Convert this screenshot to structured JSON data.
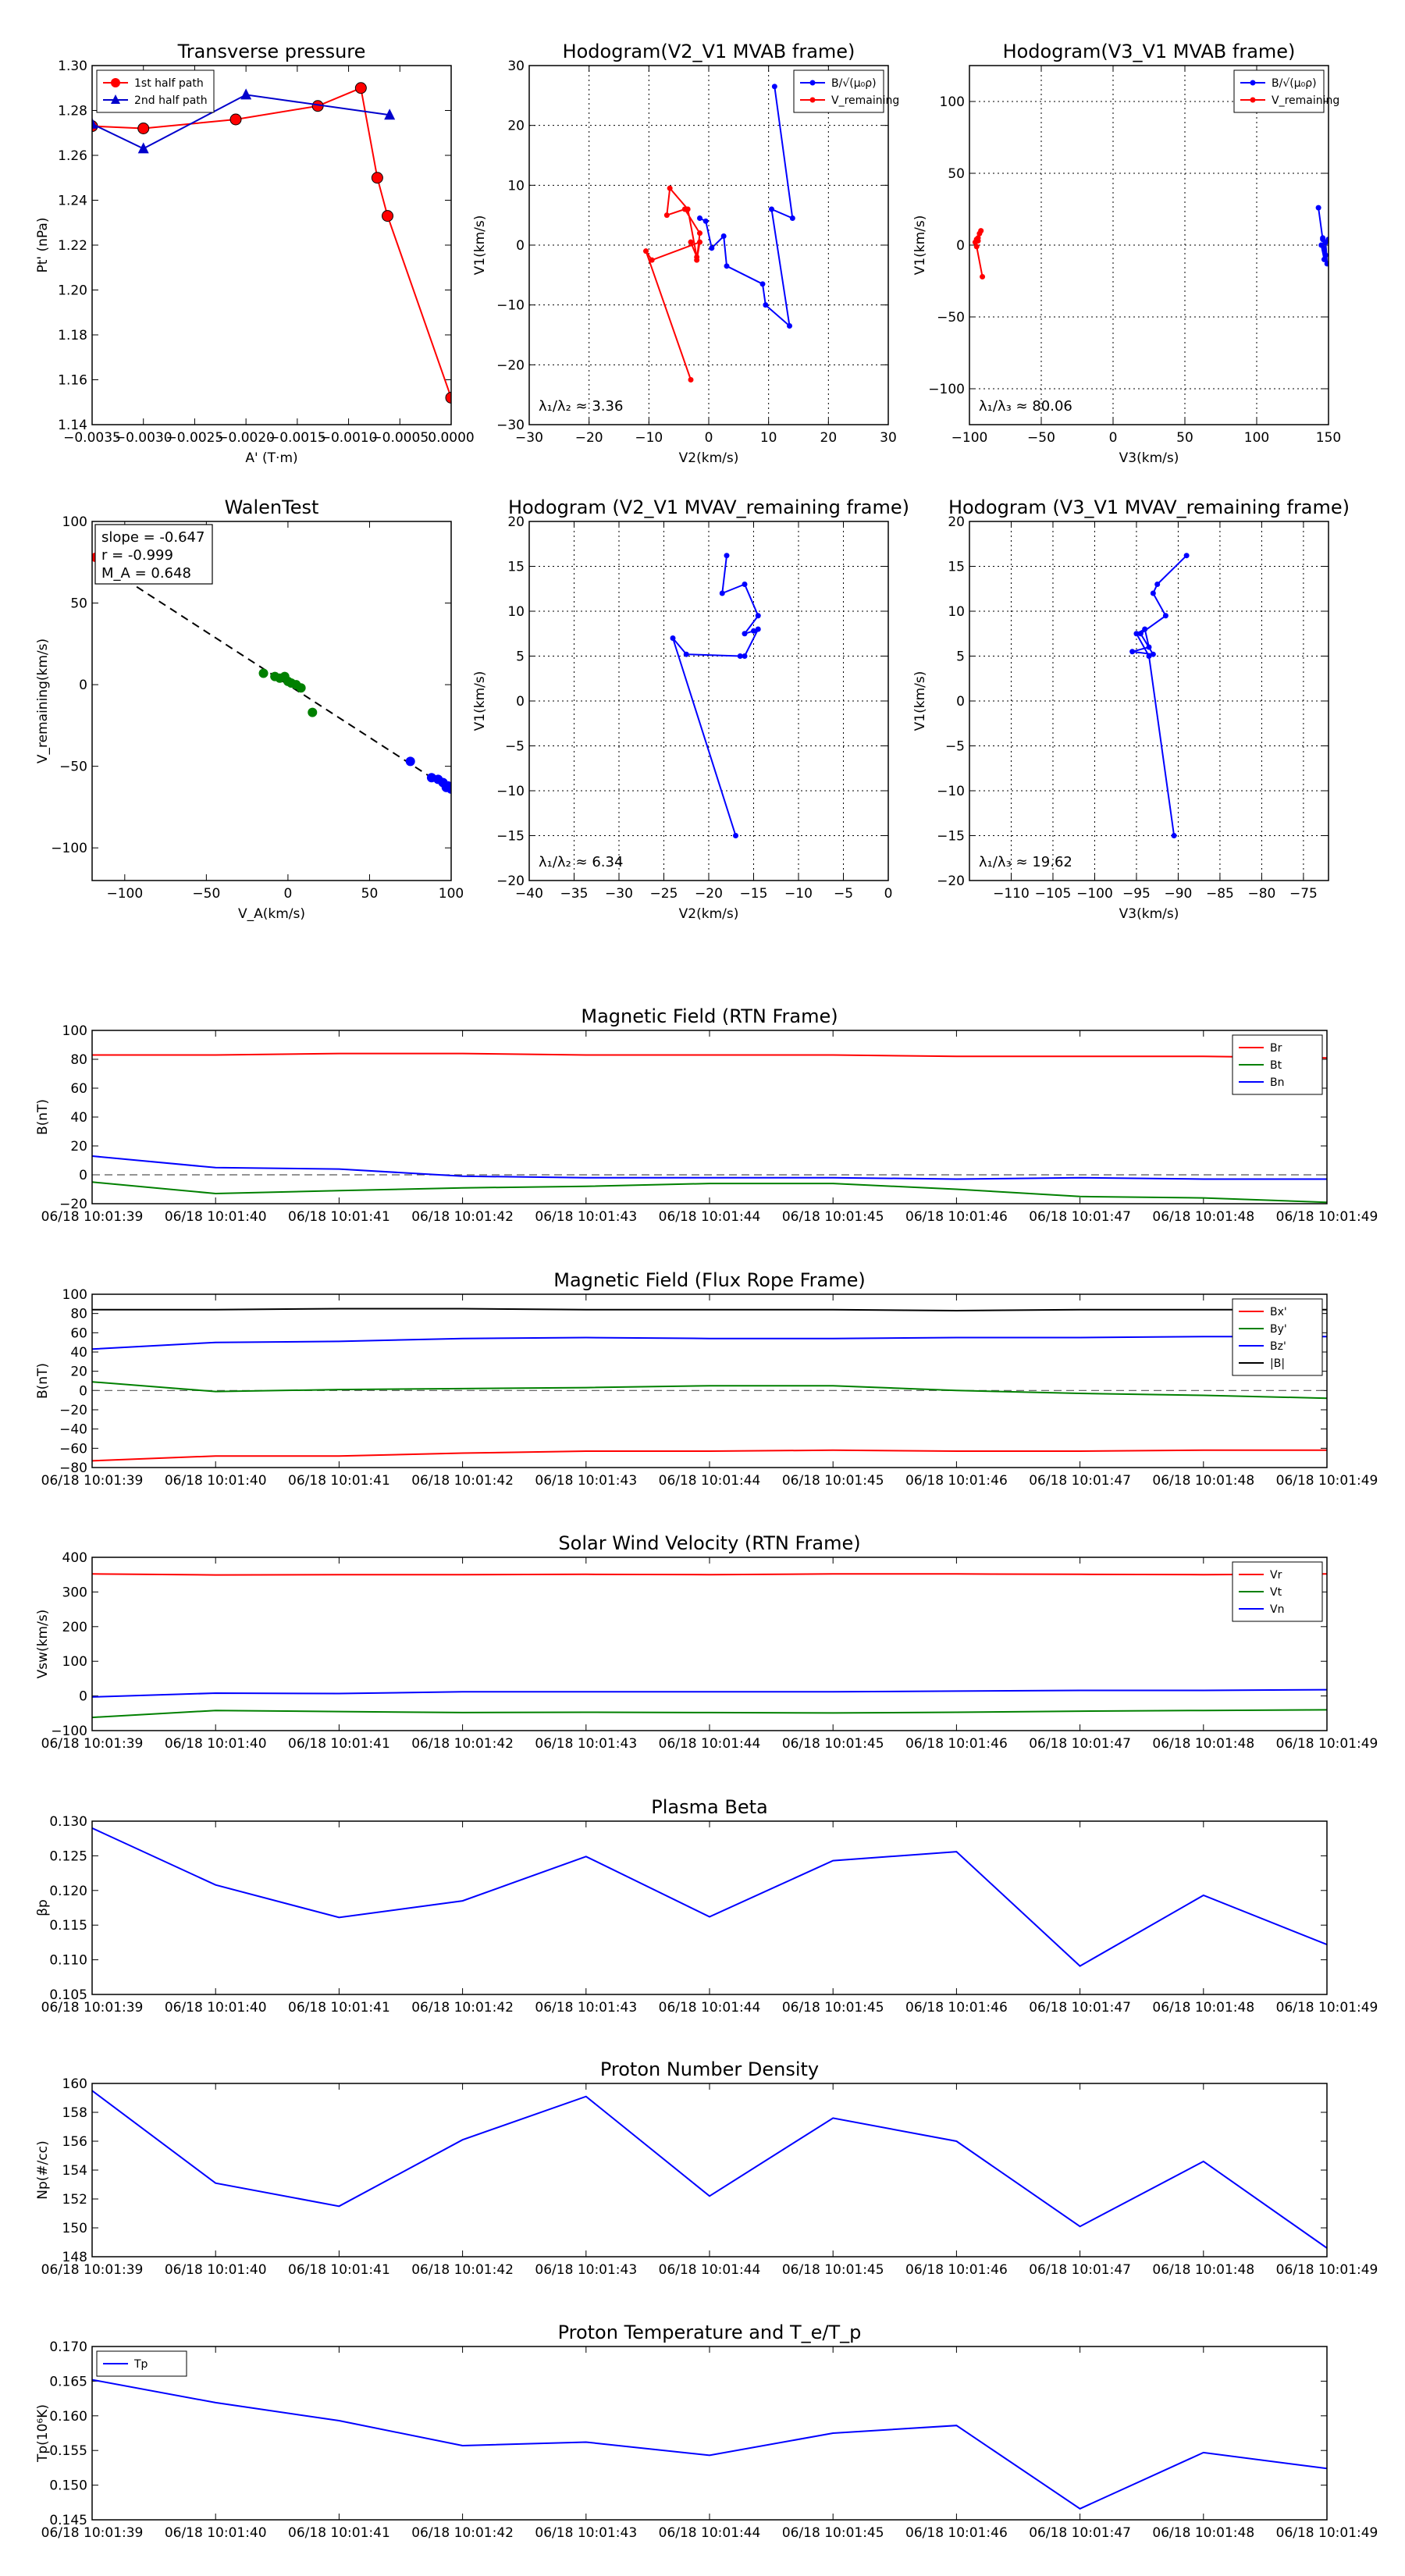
{
  "chart_data": [
    {
      "id": "pt",
      "type": "line",
      "title": "Transverse pressure",
      "xlabel": "A' (T·m)",
      "ylabel": "Pt' (nPa)",
      "xlim": [
        -0.0035,
        0.0
      ],
      "ylim": [
        1.14,
        1.3
      ],
      "xticks": [
        -0.0035,
        -0.003,
        -0.0025,
        -0.002,
        -0.0015,
        -0.001,
        -0.0005,
        0.0
      ],
      "xticklabels": [
        "−0.0035",
        "−0.0030",
        "−0.0025",
        "−0.0020",
        "−0.0015",
        "−0.0010",
        "−0.0005",
        "0.0000"
      ],
      "yticks": [
        1.14,
        1.16,
        1.18,
        1.2,
        1.22,
        1.24,
        1.26,
        1.28,
        1.3
      ],
      "yticklabels": [
        "1.14",
        "1.16",
        "1.18",
        "1.20",
        "1.22",
        "1.24",
        "1.26",
        "1.28",
        "1.30"
      ],
      "grid": false,
      "legend": "top-left",
      "series": [
        {
          "name": "1st half path",
          "color": "#ff0000",
          "marker": "circle",
          "x": [
            0.0,
            -0.00062,
            -0.00072,
            -0.00088,
            -0.0013,
            -0.0021,
            -0.003,
            -0.0035
          ],
          "y": [
            1.152,
            1.233,
            1.25,
            1.29,
            1.282,
            1.276,
            1.272,
            1.273
          ]
        },
        {
          "name": "2nd half path",
          "color": "#0000cc",
          "marker": "triangle",
          "x": [
            -0.0035,
            -0.003,
            -0.002,
            -0.0006
          ],
          "y": [
            1.274,
            1.263,
            1.287,
            1.278
          ]
        }
      ]
    },
    {
      "id": "hodo1",
      "type": "line",
      "title": "Hodogram(V2_V1 MVAB frame)",
      "xlabel": "V2(km/s)",
      "ylabel": "V1(km/s)",
      "xlim": [
        -30,
        30
      ],
      "ylim": [
        -30,
        30
      ],
      "xticks": [
        -30,
        -20,
        -10,
        0,
        10,
        20,
        30
      ],
      "yticks": [
        -30,
        -20,
        -10,
        0,
        10,
        20,
        30
      ],
      "grid": true,
      "legend": "top-right",
      "annotation": "λ₁/λ₂ ≈ 3.36",
      "series": [
        {
          "name": "B/√(μ₀ρ)",
          "color": "#0000ff",
          "x": [
            -1.5,
            -0.5,
            0.5,
            2.5,
            3,
            9,
            9.5,
            13.5,
            10.5,
            14,
            11
          ],
          "y": [
            4.5,
            4.0,
            -0.5,
            1.5,
            -3.5,
            -6.5,
            -10,
            -13.5,
            6,
            4.5,
            26.5
          ]
        },
        {
          "name": "V_remaining",
          "color": "#ff0000",
          "x": [
            -3,
            -10.5,
            -9.5,
            -1.5,
            -2,
            -1.5,
            -4,
            -7,
            -6.5,
            -3.5,
            -2,
            -3
          ],
          "y": [
            -22.5,
            -1,
            -2.5,
            0.5,
            -2.5,
            2,
            6,
            5,
            9.5,
            6,
            -2,
            0.5
          ]
        }
      ]
    },
    {
      "id": "hodo2",
      "type": "line",
      "title": "Hodogram(V3_V1 MVAB frame)",
      "xlabel": "V3(km/s)",
      "ylabel": "V1(km/s)",
      "xlim": [
        -100,
        150
      ],
      "ylim": [
        -125,
        125
      ],
      "xticks": [
        -100,
        -50,
        0,
        50,
        100,
        150
      ],
      "yticks": [
        -100,
        -50,
        0,
        50,
        100
      ],
      "grid": true,
      "legend": "top-right",
      "annotation": "λ₁/λ₃ ≈ 80.06",
      "series": [
        {
          "name": "B/√(μ₀ρ)",
          "color": "#0000ff",
          "x": [
            143,
            146,
            148,
            145,
            147,
            149,
            148,
            146,
            147,
            150
          ],
          "y": [
            26,
            4,
            -7,
            0,
            -10,
            -13,
            2,
            5,
            -3,
            4
          ]
        },
        {
          "name": "V_remaining",
          "color": "#ff0000",
          "x": [
            -91,
            -95,
            -96,
            -94,
            -95,
            -93,
            -92,
            -94
          ],
          "y": [
            -22,
            -1,
            2,
            5,
            4,
            8,
            10,
            3
          ]
        }
      ]
    },
    {
      "id": "walen",
      "type": "scatter",
      "title": "WalenTest",
      "xlabel": "V_A(km/s)",
      "ylabel": "V_remaining(km/s)",
      "xlim": [
        -120,
        100
      ],
      "ylim": [
        -120,
        100
      ],
      "xticks": [
        -100,
        -50,
        0,
        50,
        100
      ],
      "yticks": [
        -100,
        -50,
        0,
        50,
        100
      ],
      "grid": false,
      "legend": "top-left",
      "stats": [
        "slope = -0.647",
        "r = -0.999",
        "M_A = 0.648"
      ],
      "fit": {
        "slope": -0.647,
        "intercept": 0.0,
        "x": [
          -120,
          100
        ]
      },
      "series": [
        {
          "name": "red",
          "color": "#ff0000",
          "x": [
            -118
          ],
          "y": [
            78
          ]
        },
        {
          "name": "green",
          "color": "#008000",
          "x": [
            -15,
            -8,
            -5,
            -2,
            0,
            2,
            5,
            8,
            15
          ],
          "y": [
            7,
            5,
            4,
            5,
            2,
            1,
            0,
            -2,
            -17
          ]
        },
        {
          "name": "blue",
          "color": "#0000ff",
          "x": [
            75,
            88,
            92,
            95,
            97,
            98,
            100
          ],
          "y": [
            -47,
            -57,
            -58,
            -60,
            -63,
            -62,
            -64
          ]
        }
      ]
    },
    {
      "id": "hodo3",
      "type": "line",
      "title": "Hodogram (V2_V1 MVAV_remaining frame)",
      "xlabel": "V2(km/s)",
      "ylabel": "V1(km/s)",
      "xlim": [
        -40,
        0
      ],
      "ylim": [
        -20,
        20
      ],
      "xticks": [
        -40,
        -35,
        -30,
        -25,
        -20,
        -15,
        -10,
        -5,
        0
      ],
      "yticks": [
        -20,
        -15,
        -10,
        -5,
        0,
        5,
        10,
        15,
        20
      ],
      "grid": true,
      "annotation": "λ₁/λ₂ ≈ 6.34",
      "series": [
        {
          "name": "V",
          "color": "#0000ff",
          "x": [
            -17,
            -24,
            -22.5,
            -16.5,
            -16,
            -14.5,
            -15,
            -16,
            -14.5,
            -16,
            -18.5,
            -18
          ],
          "y": [
            -15,
            7,
            5.2,
            5,
            5,
            8,
            7.8,
            7.5,
            9.5,
            13,
            12,
            16.2
          ]
        }
      ]
    },
    {
      "id": "hodo4",
      "type": "line",
      "title": "Hodogram (V3_V1 MVAV_remaining frame)",
      "xlabel": "V3(km/s)",
      "ylabel": "V1(km/s)",
      "xlim": [
        -115,
        -72
      ],
      "ylim": [
        -20,
        20
      ],
      "xticks": [
        -110,
        -105,
        -100,
        -95,
        -90,
        -85,
        -80,
        -75
      ],
      "yticks": [
        -20,
        -15,
        -10,
        -5,
        0,
        5,
        10,
        15,
        20
      ],
      "grid": true,
      "annotation": "λ₁/λ₃ ≈ 19.62",
      "series": [
        {
          "name": "V",
          "color": "#0000ff",
          "x": [
            -90.5,
            -93.5,
            -95,
            -94,
            -93.5,
            -95.5,
            -93,
            -94.5,
            -91.5,
            -93,
            -92.5,
            -89
          ],
          "y": [
            -15,
            5,
            7.5,
            8,
            6,
            5.5,
            5.2,
            7.5,
            9.5,
            12,
            13,
            16.2
          ]
        }
      ]
    },
    {
      "id": "bfield",
      "type": "line",
      "title": "Magnetic Field (RTN Frame)",
      "ylabel": "B(nT)",
      "ylim": [
        -20,
        100
      ],
      "yticks": [
        -20,
        0,
        20,
        40,
        60,
        80,
        100
      ],
      "dashed_zero": true,
      "legend": "top-right",
      "series": [
        {
          "name": "Br",
          "color": "#ff0000",
          "values": [
            83,
            83,
            84,
            84,
            83,
            83,
            83,
            82,
            82,
            82,
            81
          ]
        },
        {
          "name": "Bt",
          "color": "#008000",
          "values": [
            -5,
            -13,
            -11,
            -9,
            -8,
            -6,
            -6,
            -10,
            -15,
            -16,
            -19
          ]
        },
        {
          "name": "Bn",
          "color": "#0000ff",
          "values": [
            13,
            5,
            4,
            -1,
            -2,
            -2,
            -2,
            -3,
            -2,
            -3,
            -3
          ]
        }
      ]
    },
    {
      "id": "bfr",
      "type": "line",
      "title": "Magnetic Field (Flux Rope Frame)",
      "ylabel": "B(nT)",
      "ylim": [
        -80,
        100
      ],
      "yticks": [
        -80,
        -60,
        -40,
        -20,
        0,
        20,
        40,
        60,
        80,
        100
      ],
      "dashed_zero": true,
      "legend": "top-right",
      "series": [
        {
          "name": "Bx'",
          "color": "#ff0000",
          "values": [
            -73,
            -68,
            -68,
            -65,
            -63,
            -63,
            -62,
            -63,
            -63,
            -62,
            -62
          ]
        },
        {
          "name": "By'",
          "color": "#008000",
          "values": [
            9,
            -1,
            1,
            2,
            3,
            5,
            5,
            0,
            -3,
            -5,
            -8
          ]
        },
        {
          "name": "Bz'",
          "color": "#0000ff",
          "values": [
            43,
            50,
            51,
            54,
            55,
            54,
            54,
            55,
            55,
            56,
            56
          ]
        },
        {
          "name": "|B|",
          "color": "#000000",
          "values": [
            84,
            84,
            85,
            85,
            84,
            84,
            84,
            83,
            84,
            84,
            84
          ]
        }
      ]
    },
    {
      "id": "vsw",
      "type": "line",
      "title": "Solar Wind Velocity (RTN Frame)",
      "ylabel": "Vsw(km/s)",
      "ylim": [
        -100,
        400
      ],
      "yticks": [
        -100,
        0,
        100,
        200,
        300,
        400
      ],
      "legend": "top-right",
      "series": [
        {
          "name": "Vr",
          "color": "#ff0000",
          "values": [
            352,
            349,
            350,
            350,
            351,
            350,
            352,
            352,
            351,
            350,
            352
          ]
        },
        {
          "name": "Vt",
          "color": "#008000",
          "values": [
            -62,
            -42,
            -45,
            -48,
            -47,
            -48,
            -49,
            -47,
            -44,
            -42,
            -40
          ]
        },
        {
          "name": "Vn",
          "color": "#0000ff",
          "values": [
            -3,
            8,
            7,
            12,
            12,
            12,
            12,
            14,
            16,
            16,
            18
          ]
        }
      ]
    },
    {
      "id": "beta",
      "type": "line",
      "title": "Plasma Beta",
      "ylabel": "βp",
      "ylim": [
        0.105,
        0.13
      ],
      "yticks": [
        0.105,
        0.11,
        0.115,
        0.12,
        0.125,
        0.13
      ],
      "yticklabels": [
        "0.105",
        "0.110",
        "0.115",
        "0.120",
        "0.125",
        "0.130"
      ],
      "series": [
        {
          "name": "beta",
          "color": "#0000ff",
          "values": [
            0.129,
            0.1208,
            0.1161,
            0.1185,
            0.1249,
            0.1162,
            0.1243,
            0.1256,
            0.1091,
            0.1193,
            0.1122
          ]
        }
      ]
    },
    {
      "id": "np",
      "type": "line",
      "title": "Proton Number Density",
      "ylabel": "Np(#/cc)",
      "ylim": [
        148,
        160
      ],
      "yticks": [
        148,
        150,
        152,
        154,
        156,
        158,
        160
      ],
      "series": [
        {
          "name": "Np",
          "color": "#0000ff",
          "values": [
            159.5,
            153.1,
            151.5,
            156.1,
            159.1,
            152.2,
            157.6,
            156.0,
            150.1,
            154.6,
            148.6
          ]
        }
      ]
    },
    {
      "id": "tp",
      "type": "line",
      "title": "Proton Temperature and T_e/T_p",
      "ylabel": "Tp(10⁶K)",
      "ylim": [
        0.145,
        0.17
      ],
      "yticks": [
        0.145,
        0.15,
        0.155,
        0.16,
        0.165,
        0.17
      ],
      "yticklabels": [
        "0.145",
        "0.150",
        "0.155",
        "0.160",
        "0.165",
        "0.170"
      ],
      "legend": "top-left",
      "series": [
        {
          "name": "Tp",
          "color": "#0000ff",
          "values": [
            0.1652,
            0.1619,
            0.1593,
            0.1557,
            0.1562,
            0.1543,
            0.1575,
            0.1586,
            0.1466,
            0.1547,
            0.1524
          ]
        }
      ]
    }
  ],
  "time_axis": {
    "ticks": [
      "06/18 10:01:39",
      "06/18 10:01:40",
      "06/18 10:01:41",
      "06/18 10:01:42",
      "06/18 10:01:43",
      "06/18 10:01:44",
      "06/18 10:01:45",
      "06/18 10:01:46",
      "06/18 10:01:47",
      "06/18 10:01:48",
      "06/18 10:01:49"
    ]
  }
}
